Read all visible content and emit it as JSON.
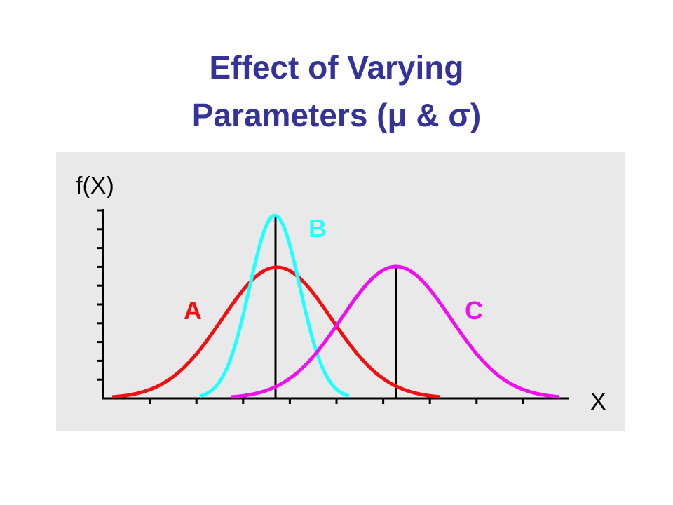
{
  "title": {
    "line1": "Effect of Varying",
    "line2": "Parameters (μ & σ)"
  },
  "axes": {
    "y_label": "f(X)",
    "x_label": "X"
  },
  "curves": [
    {
      "label": "A"
    },
    {
      "label": "B"
    },
    {
      "label": "C"
    }
  ]
}
